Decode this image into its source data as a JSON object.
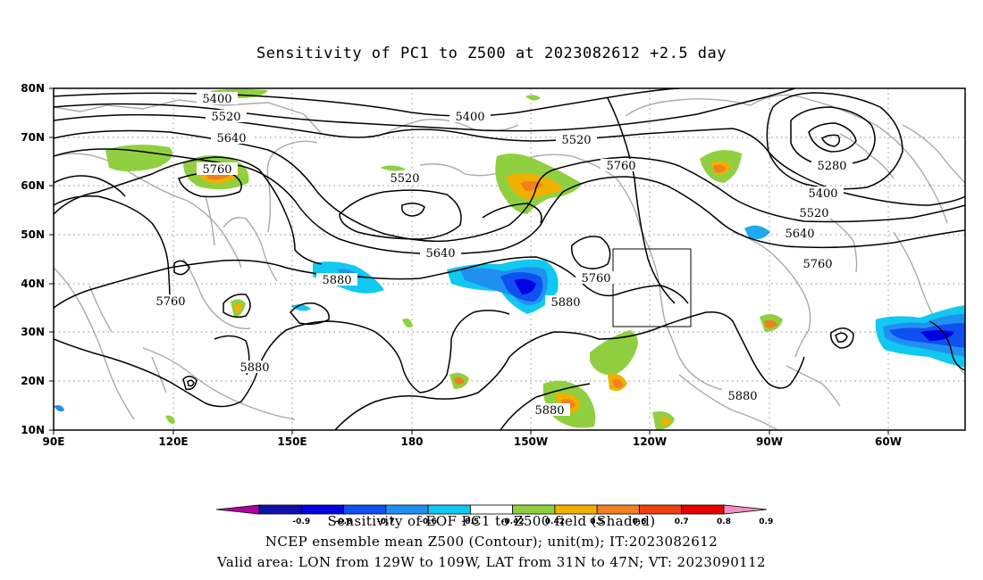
{
  "title": "Sensitivity of PC1 to Z500 at 2023082612 +2.5 day",
  "axes": {
    "lat_labels": [
      "80N",
      "70N",
      "60N",
      "50N",
      "40N",
      "30N",
      "20N",
      "10N"
    ],
    "lon_labels": [
      "90E",
      "120E",
      "150E",
      "180",
      "150W",
      "120W",
      "90W",
      "60W"
    ]
  },
  "contour_labels": [
    {
      "text": "5400",
      "id": "c5400-a"
    },
    {
      "text": "5520",
      "id": "c5520-a"
    },
    {
      "text": "5640",
      "id": "c5640-a"
    },
    {
      "text": "5760",
      "id": "c5760-a"
    },
    {
      "text": "5400",
      "id": "c5400-b"
    },
    {
      "text": "5520",
      "id": "c5520-b"
    },
    {
      "text": "5520",
      "id": "c5520-c"
    },
    {
      "text": "5760",
      "id": "c5760-b"
    },
    {
      "text": "5280",
      "id": "c5280"
    },
    {
      "text": "5400",
      "id": "c5400-c"
    },
    {
      "text": "5520",
      "id": "c5520-d"
    },
    {
      "text": "5640",
      "id": "c5640-b"
    },
    {
      "text": "5760",
      "id": "c5760-c"
    },
    {
      "text": "5640",
      "id": "c5640-c"
    },
    {
      "text": "5760",
      "id": "c5760-d"
    },
    {
      "text": "5880",
      "id": "c5880-a"
    },
    {
      "text": "5880",
      "id": "c5880-b"
    },
    {
      "text": "5760",
      "id": "c5760-e"
    },
    {
      "text": "5880",
      "id": "c5880-c"
    },
    {
      "text": "5880",
      "id": "c5880-d"
    },
    {
      "text": "5880",
      "id": "c5880-e"
    }
  ],
  "colorbar": {
    "labels": [
      "-0.9",
      "-0.8",
      "-0.7",
      "-0.6",
      "-0.5",
      "-0.42",
      "0.42",
      "0.5",
      "0.6",
      "0.7",
      "0.8",
      "0.9"
    ],
    "colors": [
      "#b000a0",
      "#1010a8",
      "#0000e0",
      "#1050f0",
      "#2090f0",
      "#10c8f0",
      "#ffffff",
      "#90d040",
      "#f0b000",
      "#f08020",
      "#f04010",
      "#e80000",
      "#f090c0"
    ]
  },
  "footer": {
    "line1": "Sensitivity of EOF PC1 to Z500 field (Shaded)",
    "line2": "NCEP ensemble mean Z500 (Contour); unit(m); IT:2023082612",
    "line3": "Valid area: LON from 129W to 109W, LAT from 31N to 47N; VT: 2023090112"
  }
}
